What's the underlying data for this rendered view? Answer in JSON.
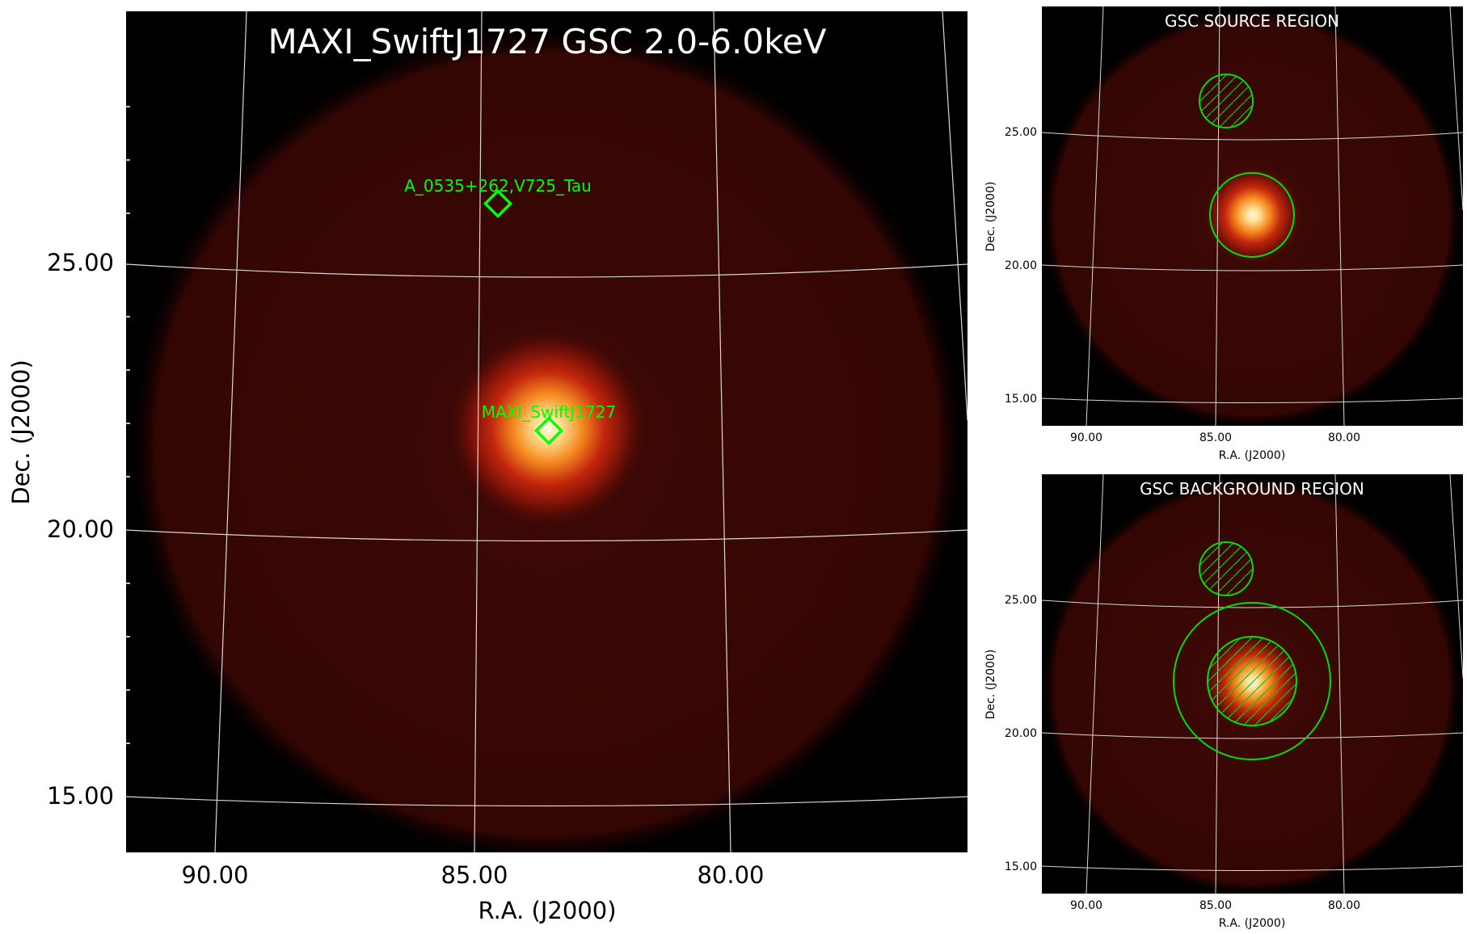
{
  "figure": {
    "colors": {
      "background": "#000000",
      "field": "#3a0805",
      "grid": "#d8d8d8",
      "region": "#00e000",
      "marker": "#00ff00",
      "title_main": "#ffffff",
      "title_panel": "#ffffff",
      "axis_text": "#000000"
    },
    "main": {
      "title": "MAXI_SwiftJ1727 GSC 2.0-6.0keV",
      "xlabel": "R.A. (J2000)",
      "ylabel": "Dec. (J2000)",
      "xticks": [
        "90.00",
        "85.00",
        "80.00"
      ],
      "yticks": [
        "25.00",
        "20.00",
        "15.00"
      ],
      "markers": [
        {
          "label": "A_0535+262,V725_Tau",
          "ra": 84.7,
          "dec": 26.2
        },
        {
          "label": "MAXI_SwiftJ1727",
          "ra": 83.7,
          "dec": 21.9
        }
      ]
    },
    "panels": [
      {
        "title": "GSC SOURCE REGION",
        "xlabel": "R.A. (J2000)",
        "ylabel": "Dec. (J2000)",
        "xticks": [
          "90.00",
          "85.00",
          "80.00"
        ],
        "yticks": [
          "25.00",
          "20.00",
          "15.00"
        ]
      },
      {
        "title": "GSC BACKGROUND REGION",
        "xlabel": "R.A. (J2000)",
        "ylabel": "Dec. (J2000)",
        "xticks": [
          "90.00",
          "85.00",
          "80.00"
        ],
        "yticks": [
          "25.00",
          "20.00",
          "15.00"
        ]
      }
    ]
  }
}
